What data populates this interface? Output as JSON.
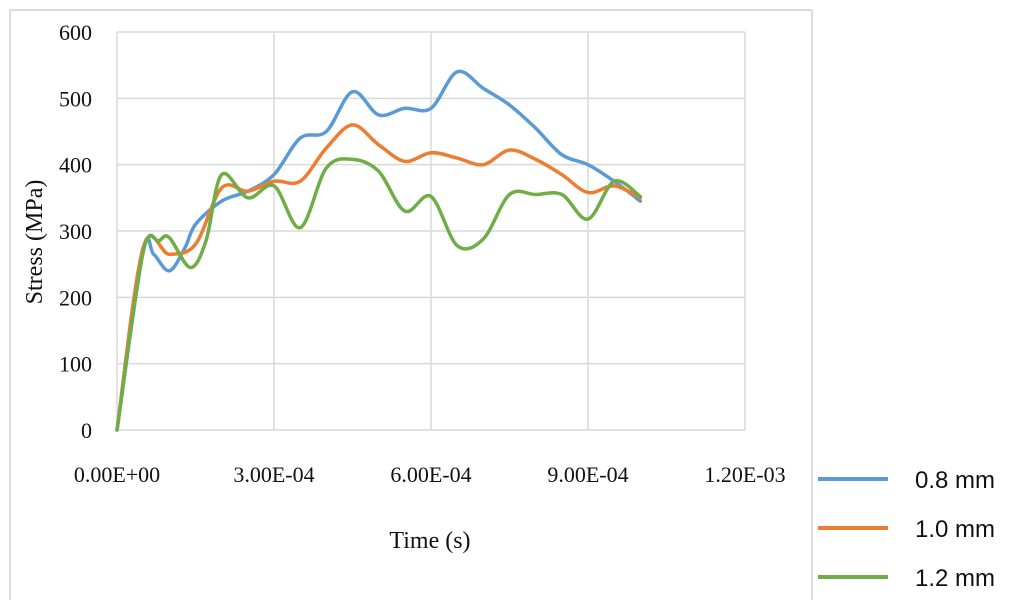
{
  "chart_data": {
    "type": "line",
    "title": "",
    "xlabel": "Time (s)",
    "ylabel": "Stress (MPa)",
    "xlim": [
      0,
      0.0012
    ],
    "ylim": [
      0,
      600
    ],
    "x_ticks": [
      0,
      0.0003,
      0.0006,
      0.0009,
      0.0012
    ],
    "x_tick_labels": [
      "0.00E+00",
      "3.00E-04",
      "6.00E-04",
      "9.00E-04",
      "1.20E-03"
    ],
    "y_ticks": [
      0,
      100,
      200,
      300,
      400,
      500,
      600
    ],
    "y_tick_labels": [
      "0",
      "100",
      "200",
      "300",
      "400",
      "500",
      "600"
    ],
    "grid": true,
    "legend_position": "right-bottom",
    "series": [
      {
        "name": "0.8 mm",
        "color": "#5b9bd5",
        "points": [
          [
            0,
            0
          ],
          [
            5e-05,
            270
          ],
          [
            7e-05,
            265
          ],
          [
            0.0001,
            240
          ],
          [
            0.00013,
            275
          ],
          [
            0.00015,
            310
          ],
          [
            0.0002,
            345
          ],
          [
            0.00025,
            360
          ],
          [
            0.0003,
            385
          ],
          [
            0.00035,
            440
          ],
          [
            0.0004,
            450
          ],
          [
            0.00045,
            510
          ],
          [
            0.0005,
            475
          ],
          [
            0.00055,
            485
          ],
          [
            0.0006,
            485
          ],
          [
            0.00065,
            540
          ],
          [
            0.0007,
            515
          ],
          [
            0.00075,
            490
          ],
          [
            0.0008,
            455
          ],
          [
            0.00085,
            415
          ],
          [
            0.0009,
            400
          ],
          [
            0.00095,
            375
          ],
          [
            0.001,
            345
          ]
        ]
      },
      {
        "name": "1.0 mm",
        "color": "#ed7d31",
        "points": [
          [
            0,
            0
          ],
          [
            5e-05,
            275
          ],
          [
            0.0001,
            265
          ],
          [
            0.00015,
            280
          ],
          [
            0.0002,
            365
          ],
          [
            0.00025,
            360
          ],
          [
            0.0003,
            375
          ],
          [
            0.00035,
            375
          ],
          [
            0.0004,
            425
          ],
          [
            0.00045,
            460
          ],
          [
            0.0005,
            430
          ],
          [
            0.00055,
            405
          ],
          [
            0.0006,
            418
          ],
          [
            0.00065,
            410
          ],
          [
            0.0007,
            400
          ],
          [
            0.00075,
            422
          ],
          [
            0.0008,
            408
          ],
          [
            0.00085,
            385
          ],
          [
            0.0009,
            358
          ],
          [
            0.00095,
            368
          ],
          [
            0.001,
            350
          ]
        ]
      },
      {
        "name": "1.2 mm",
        "color": "#70ad47",
        "points": [
          [
            0,
            0
          ],
          [
            5e-05,
            268
          ],
          [
            8e-05,
            285
          ],
          [
            0.0001,
            290
          ],
          [
            0.00014,
            245
          ],
          [
            0.00017,
            285
          ],
          [
            0.0002,
            385
          ],
          [
            0.00025,
            350
          ],
          [
            0.0003,
            368
          ],
          [
            0.00035,
            305
          ],
          [
            0.0004,
            395
          ],
          [
            0.00045,
            408
          ],
          [
            0.0005,
            390
          ],
          [
            0.00055,
            330
          ],
          [
            0.0006,
            352
          ],
          [
            0.00065,
            278
          ],
          [
            0.0007,
            288
          ],
          [
            0.00075,
            355
          ],
          [
            0.0008,
            355
          ],
          [
            0.00085,
            355
          ],
          [
            0.0009,
            318
          ],
          [
            0.00095,
            375
          ],
          [
            0.001,
            352
          ]
        ]
      }
    ]
  }
}
